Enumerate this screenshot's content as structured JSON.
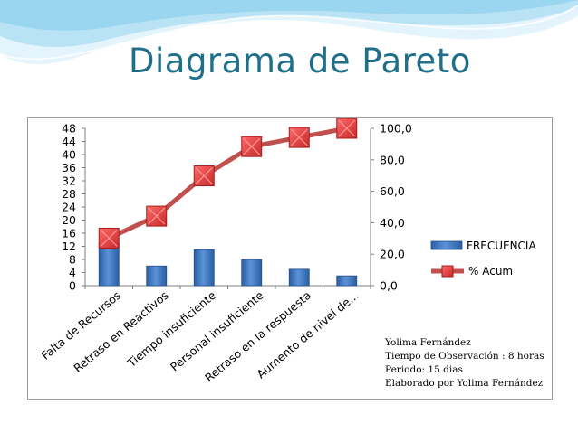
{
  "slide": {
    "title": "Diagrama de Pareto"
  },
  "colors": {
    "title": "#1f6f8b",
    "wave_light": "#d9f0fb",
    "wave_mid": "#a9dcf2",
    "bar_fill": "#3f78c2",
    "line": "#c0504d",
    "marker": "#e03a3a"
  },
  "chart_data": {
    "type": "bar",
    "categories": [
      "Falta de Recursos",
      "Retraso en Reactivos",
      "Tiempo insuficiente",
      "Personal insuficiente",
      "Retraso en la respuesta",
      "Aumento de nivel de..."
    ],
    "series": [
      {
        "name": "FRECUENCIA",
        "type": "bar",
        "axis": "left",
        "values": [
          13,
          6,
          11,
          8,
          5,
          3
        ]
      },
      {
        "name": "% Acum",
        "type": "line",
        "axis": "right",
        "values": [
          30.2,
          44.2,
          69.8,
          88.4,
          94.2,
          100
        ]
      }
    ],
    "y_left": {
      "min": 0,
      "max": 48,
      "ticks": [
        "0",
        "4",
        "8",
        "12",
        "16",
        "20",
        "24",
        "28",
        "32",
        "36",
        "40",
        "44",
        "48"
      ]
    },
    "y_right": {
      "min": 0,
      "max": 100,
      "ticks": [
        "0,0",
        "20,0",
        "40,0",
        "60,0",
        "80,0",
        "100,0"
      ]
    },
    "legend_position": "right",
    "grid": false
  },
  "notes": [
    "Yolima Fernández",
    "Tiempo de Observación : 8 horas",
    "Periodo: 15 dias",
    "Elaborado por Yolima Fernández"
  ]
}
